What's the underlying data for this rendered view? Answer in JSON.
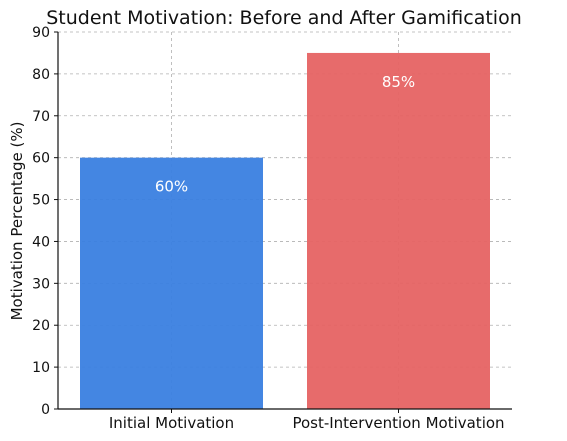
{
  "chart_data": {
    "type": "bar",
    "title": "Student Motivation: Before and After Gamification",
    "xlabel": "",
    "ylabel": "Motivation Percentage (%)",
    "categories": [
      "Initial Motivation",
      "Post-Intervention Motivation"
    ],
    "values": [
      60,
      85
    ],
    "data_labels": [
      "60%",
      "85%"
    ],
    "bar_colors": [
      "#3a7fe0",
      "#e66363"
    ],
    "ylim": [
      0,
      90
    ],
    "yticks": [
      0,
      10,
      20,
      30,
      40,
      50,
      60,
      70,
      80,
      90
    ],
    "grid": true,
    "legend": "none"
  }
}
